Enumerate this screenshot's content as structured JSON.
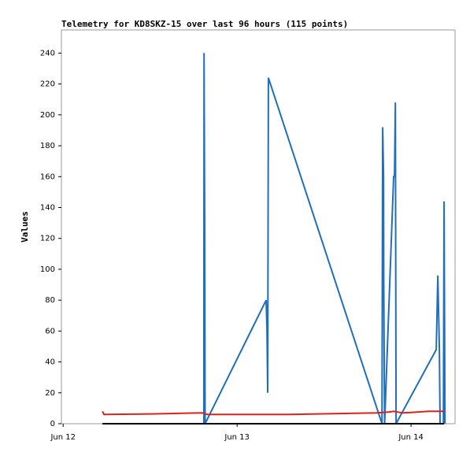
{
  "chart_data": {
    "type": "line",
    "title": "Telemetry for KD8SKZ-15 over last 96 hours (115 points)",
    "ylabel": "Values",
    "xlim": [
      11.99,
      14.253
    ],
    "xticks": [
      {
        "value": 12,
        "label": "Jun 12"
      },
      {
        "value": 13,
        "label": "Jun 13"
      },
      {
        "value": 14,
        "label": "Jun 14"
      }
    ],
    "ylim": [
      0,
      255
    ],
    "yticks": [
      0,
      20,
      40,
      60,
      80,
      100,
      120,
      140,
      160,
      180,
      200,
      220,
      240
    ],
    "series": [
      {
        "color": "#1f6fbf",
        "x": [
          12.226,
          12.809,
          12.81,
          12.814,
          12.816,
          13.167,
          13.172,
          13.176,
          13.18,
          13.833,
          13.837,
          13.842,
          13.843,
          13.846,
          13.848,
          13.9,
          13.905,
          13.91,
          13.914,
          14.145,
          14.154,
          14.163,
          14.167,
          14.186,
          14.19,
          14.195
        ],
        "values": [
          0,
          0,
          240,
          120,
          0,
          80,
          60,
          20,
          224,
          0,
          192,
          160,
          96,
          32,
          0,
          160,
          160,
          208,
          0,
          48,
          96,
          48,
          0,
          0,
          144,
          0
        ]
      },
      {
        "color": "#e0201a",
        "x": [
          12.226,
          12.235,
          12.5,
          12.8,
          12.83,
          13.3,
          13.8,
          13.87,
          13.9,
          13.95,
          14.0,
          14.1,
          14.19
        ],
        "values": [
          8,
          6,
          6.3,
          7,
          6,
          6,
          7,
          7.5,
          8,
          7,
          7.3,
          8,
          8
        ]
      },
      {
        "color": "#000000",
        "x": [
          12.226,
          14.19
        ],
        "values": [
          0,
          0
        ]
      }
    ]
  }
}
